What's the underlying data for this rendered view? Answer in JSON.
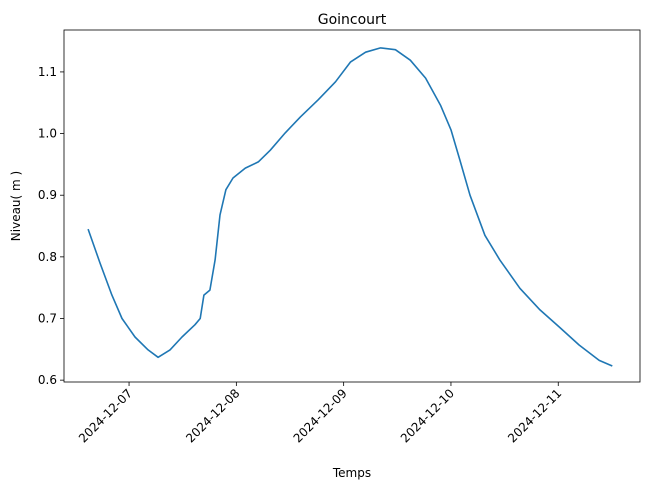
{
  "chart_data": {
    "type": "line",
    "title": "Goincourt",
    "xlabel": "Temps",
    "ylabel": "Niveau( m )",
    "xlim": [
      "2024-12-06T09:27",
      "2024-12-11T18:17"
    ],
    "ylim": [
      0.597,
      1.168
    ],
    "x_ticks": [
      "2024-12-07",
      "2024-12-08",
      "2024-12-09",
      "2024-12-10",
      "2024-12-11"
    ],
    "y_ticks": [
      0.6,
      0.7,
      0.8,
      0.9,
      1.0,
      1.1
    ],
    "y_tick_labels": [
      "0.6",
      "0.7",
      "0.8",
      "0.9",
      "1.0",
      "1.1"
    ],
    "grid": false,
    "line_color": "#1f77b4",
    "series": [
      {
        "x": [
          "2024-12-06T14:50",
          "2024-12-06T17:30",
          "2024-12-06T20:10",
          "2024-12-06T22:25",
          "2024-12-07T01:20",
          "2024-12-07T04:15",
          "2024-12-07T06:30",
          "2024-12-07T09:10",
          "2024-12-07T11:50",
          "2024-12-07T14:45",
          "2024-12-07T15:55",
          "2024-12-07T16:45",
          "2024-12-07T18:05",
          "2024-12-07T19:15",
          "2024-12-07T20:20",
          "2024-12-07T21:40",
          "2024-12-07T23:15",
          "2024-12-08T02:00",
          "2024-12-08T04:55",
          "2024-12-08T07:35",
          "2024-12-08T10:55",
          "2024-12-08T14:20",
          "2024-12-08T18:20",
          "2024-12-08T22:10",
          "2024-12-09T01:30",
          "2024-12-09T04:55",
          "2024-12-09T08:15",
          "2024-12-09T11:35",
          "2024-12-09T14:55",
          "2024-12-09T18:20",
          "2024-12-09T21:40",
          "2024-12-10T00:00",
          "2024-12-10T02:00",
          "2024-12-10T04:15",
          "2024-12-10T07:35",
          "2024-12-10T10:55",
          "2024-12-10T15:25",
          "2024-12-10T19:55",
          "2024-12-11T00:15",
          "2024-12-11T04:40",
          "2024-12-11T09:10",
          "2024-12-11T12:05"
        ],
        "y": [
          0.845,
          0.79,
          0.738,
          0.7,
          0.67,
          0.649,
          0.637,
          0.649,
          0.67,
          0.69,
          0.7,
          0.738,
          0.746,
          0.795,
          0.868,
          0.909,
          0.928,
          0.944,
          0.954,
          0.973,
          1.001,
          1.027,
          1.055,
          1.084,
          1.116,
          1.132,
          1.139,
          1.136,
          1.119,
          1.09,
          1.046,
          1.006,
          0.957,
          0.9,
          0.835,
          0.795,
          0.749,
          0.714,
          0.686,
          0.657,
          0.632,
          0.623
        ]
      }
    ]
  }
}
